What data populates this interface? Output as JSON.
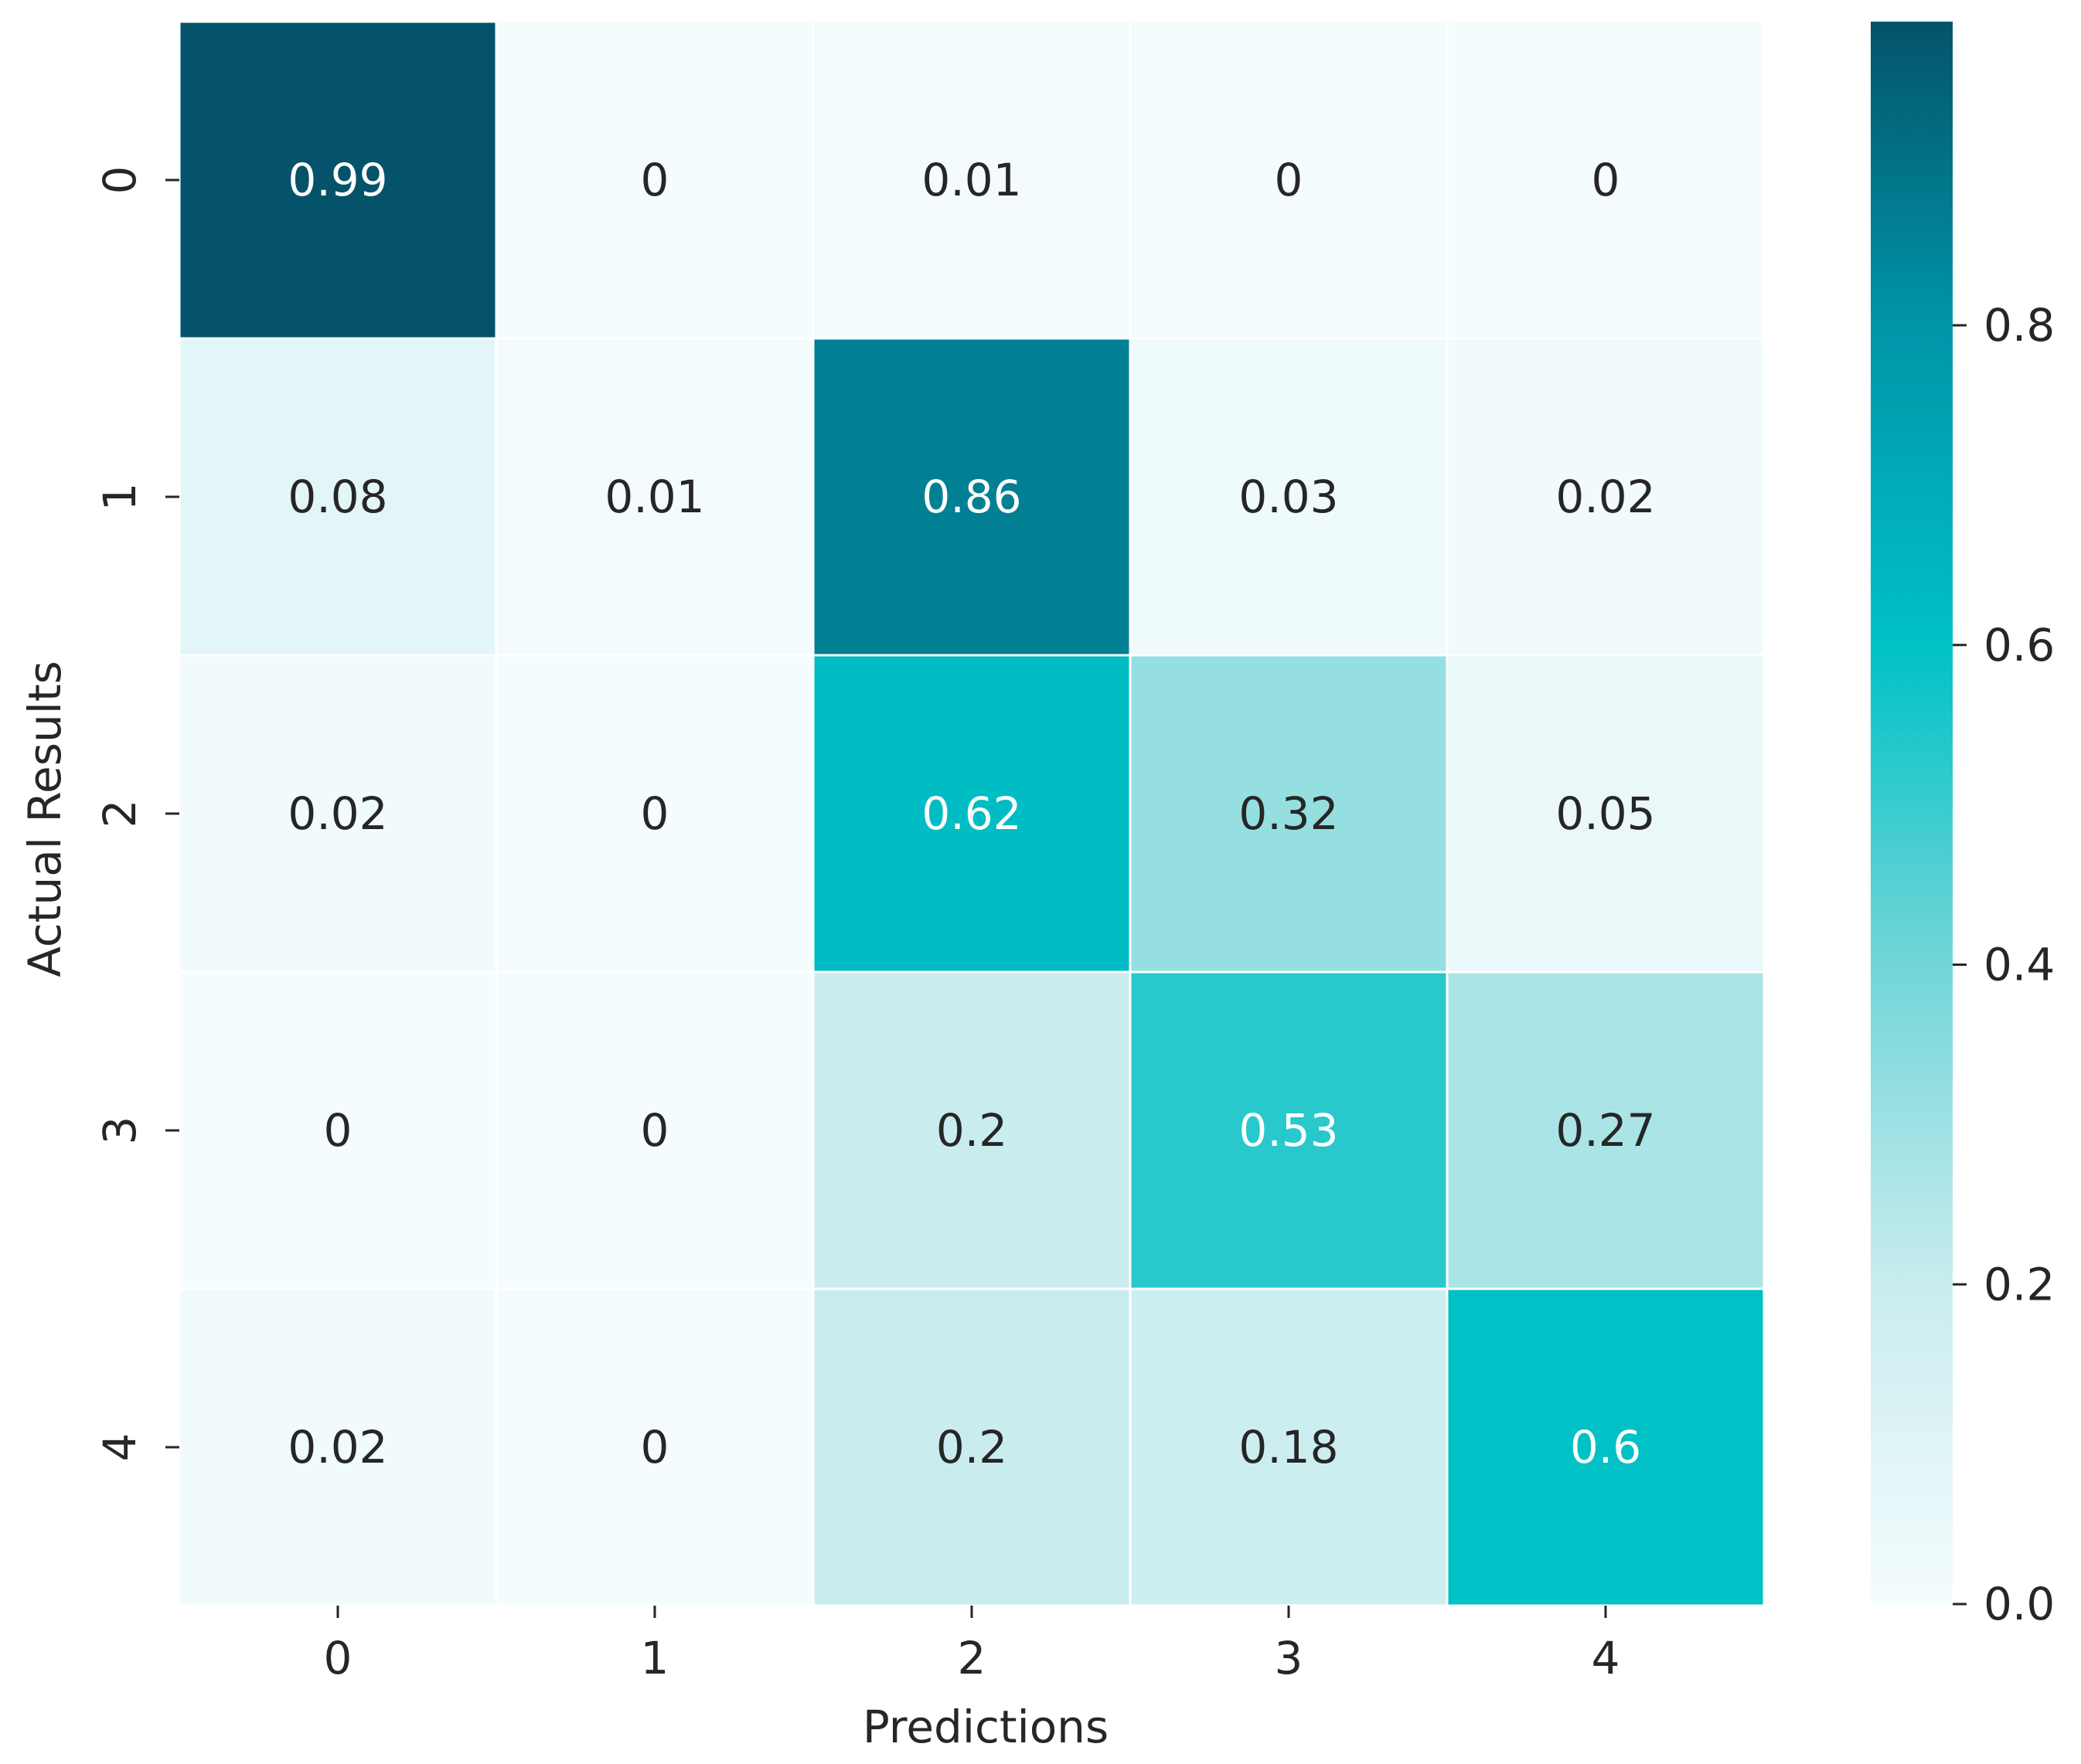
{
  "chart_data": {
    "type": "heatmap",
    "title": "",
    "xlabel": "Predictions",
    "ylabel": "Actual Results",
    "x_categories": [
      "0",
      "1",
      "2",
      "3",
      "4"
    ],
    "y_categories": [
      "0",
      "1",
      "2",
      "3",
      "4"
    ],
    "values": [
      [
        0.99,
        0,
        0.01,
        0,
        0
      ],
      [
        0.08,
        0.01,
        0.86,
        0.03,
        0.02
      ],
      [
        0.02,
        0,
        0.62,
        0.32,
        0.05
      ],
      [
        0,
        0,
        0.2,
        0.53,
        0.27
      ],
      [
        0.02,
        0,
        0.2,
        0.18,
        0.6
      ]
    ],
    "cell_labels": [
      [
        "0.99",
        "0",
        "0.01",
        "0",
        "0"
      ],
      [
        "0.08",
        "0.01",
        "0.86",
        "0.03",
        "0.02"
      ],
      [
        "0.02",
        "0",
        "0.62",
        "0.32",
        "0.05"
      ],
      [
        "0",
        "0",
        "0.2",
        "0.53",
        "0.27"
      ],
      [
        "0.02",
        "0",
        "0.2",
        "0.18",
        "0.6"
      ]
    ],
    "colorbar": {
      "range": [
        0,
        0.99
      ],
      "ticks": [
        0,
        0.2,
        0.4,
        0.6,
        0.8
      ],
      "tick_labels": [
        "0.0",
        "0.2",
        "0.4",
        "0.6",
        "0.8"
      ],
      "colormap": [
        {
          "value": 0.0,
          "color": "#f5fcfd"
        },
        {
          "value": 0.2,
          "color": "#c9ecef"
        },
        {
          "value": 0.4,
          "color": "#72d6d8"
        },
        {
          "value": 0.6,
          "color": "#00c1c6"
        },
        {
          "value": 0.8,
          "color": "#0095a8"
        },
        {
          "value": 0.99,
          "color": "#04536a"
        }
      ]
    },
    "text_color_dark": "#262626",
    "text_color_light": "#ffffff",
    "grid_line_color": "#ffffff"
  }
}
